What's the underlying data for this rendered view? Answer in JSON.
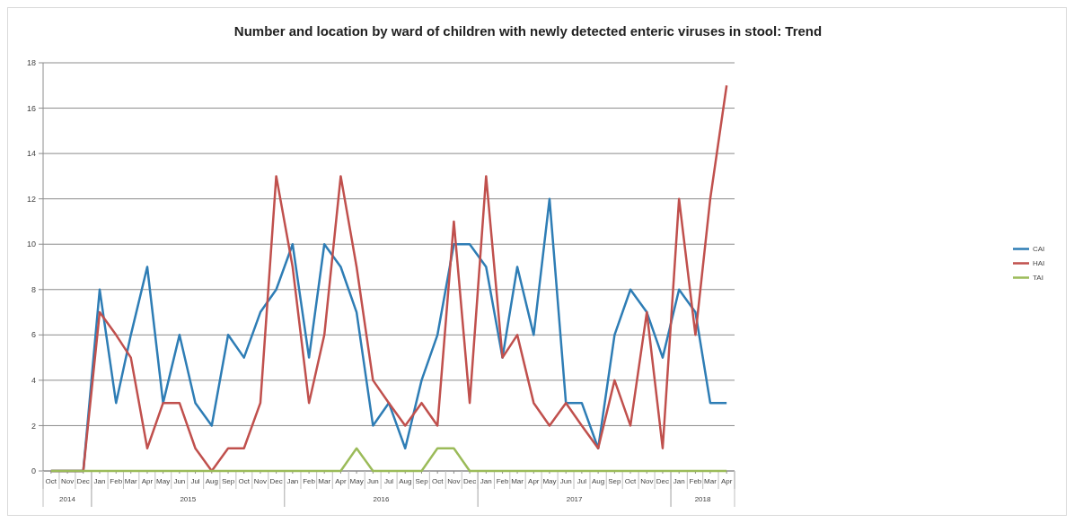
{
  "chart_data": {
    "type": "line",
    "title": "Number and location by ward of children with newly detected enteric viruses in stool: Trend",
    "x": [
      "2014-10",
      "2014-11",
      "2014-12",
      "2015-01",
      "2015-02",
      "2015-03",
      "2015-04",
      "2015-05",
      "2015-06",
      "2015-07",
      "2015-08",
      "2015-09",
      "2015-10",
      "2015-11",
      "2015-12",
      "2016-01",
      "2016-02",
      "2016-03",
      "2016-04",
      "2016-05",
      "2016-06",
      "2016-07",
      "2016-08",
      "2016-09",
      "2016-10",
      "2016-11",
      "2016-12",
      "2017-01",
      "2017-02",
      "2017-03",
      "2017-04",
      "2017-05",
      "2017-06",
      "2017-07",
      "2017-08",
      "2017-09",
      "2017-10",
      "2017-11",
      "2017-12",
      "2018-01",
      "2018-02",
      "2018-03",
      "2018-04"
    ],
    "series": [
      {
        "name": "CAI",
        "color": "#2e7db5",
        "values": [
          0,
          0,
          0,
          8,
          3,
          6,
          9,
          3,
          6,
          3,
          2,
          6,
          5,
          7,
          8,
          10,
          5,
          10,
          9,
          7,
          2,
          3,
          1,
          4,
          6,
          10,
          10,
          9,
          5,
          9,
          6,
          12,
          3,
          3,
          1,
          6,
          8,
          7,
          5,
          8,
          7,
          3,
          3
        ]
      },
      {
        "name": "HAI",
        "color": "#c0504d",
        "values": [
          0,
          0,
          0,
          7,
          6,
          5,
          1,
          3,
          3,
          1,
          0,
          1,
          1,
          3,
          13,
          9,
          3,
          6,
          13,
          9,
          4,
          3,
          2,
          3,
          2,
          11,
          3,
          13,
          5,
          6,
          3,
          2,
          3,
          2,
          1,
          4,
          2,
          7,
          1,
          12,
          6,
          12,
          17
        ]
      },
      {
        "name": "TAI",
        "color": "#9bbb59",
        "values": [
          0,
          0,
          0,
          0,
          0,
          0,
          0,
          0,
          0,
          0,
          0,
          0,
          0,
          0,
          0,
          0,
          0,
          0,
          0,
          1,
          0,
          0,
          0,
          0,
          1,
          1,
          0,
          0,
          0,
          0,
          0,
          0,
          0,
          0,
          0,
          0,
          0,
          0,
          0,
          0,
          0,
          0,
          0
        ]
      }
    ],
    "xlim": [
      "2014-09-16",
      "2018-04-16"
    ],
    "xticks": [
      {
        "value": "2014-10",
        "label": "Oct"
      },
      {
        "value": "2014-11",
        "label": "Nov"
      },
      {
        "value": "2014-12",
        "label": "Dec"
      },
      {
        "value": "2015-01",
        "label": "Jan"
      },
      {
        "value": "2015-02",
        "label": "Feb"
      },
      {
        "value": "2015-03",
        "label": "Mar"
      },
      {
        "value": "2015-04",
        "label": "Apr"
      },
      {
        "value": "2015-05",
        "label": "May"
      },
      {
        "value": "2015-06",
        "label": "Jun"
      },
      {
        "value": "2015-07",
        "label": "Jul"
      },
      {
        "value": "2015-08",
        "label": "Aug"
      },
      {
        "value": "2015-09",
        "label": "Sep"
      },
      {
        "value": "2015-10",
        "label": "Oct"
      },
      {
        "value": "2015-11",
        "label": "Nov"
      },
      {
        "value": "2015-12",
        "label": "Dec"
      },
      {
        "value": "2016-01",
        "label": "Jan"
      },
      {
        "value": "2016-02",
        "label": "Feb"
      },
      {
        "value": "2016-03",
        "label": "Mar"
      },
      {
        "value": "2016-04",
        "label": "Apr"
      },
      {
        "value": "2016-05",
        "label": "May"
      },
      {
        "value": "2016-06",
        "label": "Jun"
      },
      {
        "value": "2016-07",
        "label": "Jul"
      },
      {
        "value": "2016-08",
        "label": "Aug"
      },
      {
        "value": "2016-09",
        "label": "Sep"
      },
      {
        "value": "2016-10",
        "label": "Oct"
      },
      {
        "value": "2016-11",
        "label": "Nov"
      },
      {
        "value": "2016-12",
        "label": "Dec"
      },
      {
        "value": "2017-01",
        "label": "Jan"
      },
      {
        "value": "2017-02",
        "label": "Feb"
      },
      {
        "value": "2017-03",
        "label": "Mar"
      },
      {
        "value": "2017-04",
        "label": "Apr"
      },
      {
        "value": "2017-05",
        "label": "May"
      },
      {
        "value": "2017-06",
        "label": "Jun"
      },
      {
        "value": "2017-07",
        "label": "Jul"
      },
      {
        "value": "2017-08",
        "label": "Aug"
      },
      {
        "value": "2017-09",
        "label": "Sep"
      },
      {
        "value": "2017-10",
        "label": "Oct"
      },
      {
        "value": "2017-11",
        "label": "Nov"
      },
      {
        "value": "2017-12",
        "label": "Dec"
      },
      {
        "value": "2018-01",
        "label": "Jan"
      },
      {
        "value": "2018-02",
        "label": "Feb"
      },
      {
        "value": "2018-03",
        "label": "Mar"
      },
      {
        "value": "2018-04",
        "label": "Apr"
      }
    ],
    "annotations": [
      "2014",
      "2015",
      "2016",
      "2017",
      "2018"
    ],
    "ylim": [
      0,
      18
    ],
    "yticks": [
      0,
      2,
      4,
      6,
      8,
      10,
      12,
      14,
      16,
      18
    ],
    "grid": "y",
    "legend": "right",
    "marker": "none",
    "line_style": "solid"
  }
}
